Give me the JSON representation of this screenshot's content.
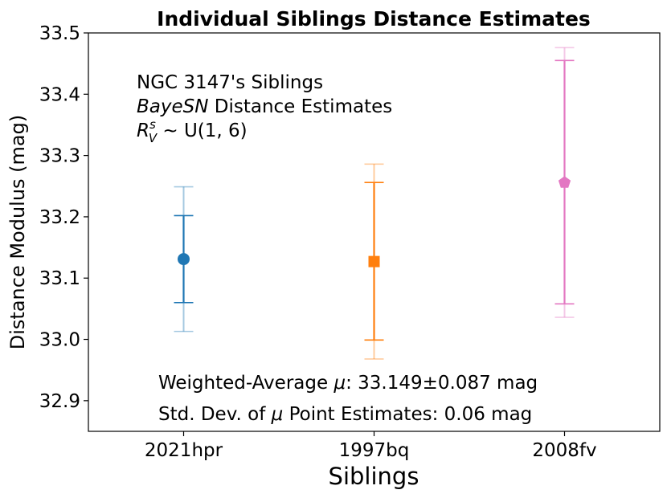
{
  "chart_data": {
    "type": "errorbar",
    "title": "Individual Siblings Distance Estimates",
    "xlabel": "Siblings",
    "ylabel": "Distance Modulus (mag)",
    "ylim": [
      32.85,
      33.5
    ],
    "yticks": [
      32.9,
      33.0,
      33.1,
      33.2,
      33.3,
      33.4,
      33.5
    ],
    "ytick_labels": [
      "32.9",
      "33.0",
      "33.1",
      "33.2",
      "33.3",
      "33.4",
      "33.5"
    ],
    "categories": [
      "2021hpr",
      "1997bq",
      "2008fv"
    ],
    "series": [
      {
        "name": "2021hpr",
        "value": 33.131,
        "inner_low": 33.06,
        "inner_high": 33.202,
        "outer_low": 33.013,
        "outer_high": 33.249,
        "color": "#1f77b4",
        "marker": "circle"
      },
      {
        "name": "1997bq",
        "value": 33.127,
        "inner_low": 32.999,
        "inner_high": 33.256,
        "outer_low": 32.968,
        "outer_high": 33.286,
        "color": "#ff7f0e",
        "marker": "square"
      },
      {
        "name": "2008fv",
        "value": 33.256,
        "inner_low": 33.058,
        "inner_high": 33.455,
        "outer_low": 33.036,
        "outer_high": 33.476,
        "color": "#e377c2",
        "marker": "pentagon"
      }
    ],
    "annotation": {
      "line1": "NGC 3147's Siblings",
      "line2_italic": "BayeSN",
      "line2_rest": " Distance Estimates",
      "line3_R": "R",
      "line3_sup": "s",
      "line3_sub": "V",
      "line3_rest": " ∼ U(1, 6)"
    },
    "footer": {
      "line1_prefix": "Weighted-Average ",
      "line1_mu": "μ",
      "line1_suffix": ":  33.149±0.087 mag",
      "line2_prefix": "Std. Dev. of ",
      "line2_mu": "μ",
      "line2_suffix": " Point Estimates:   0.06 mag"
    }
  }
}
